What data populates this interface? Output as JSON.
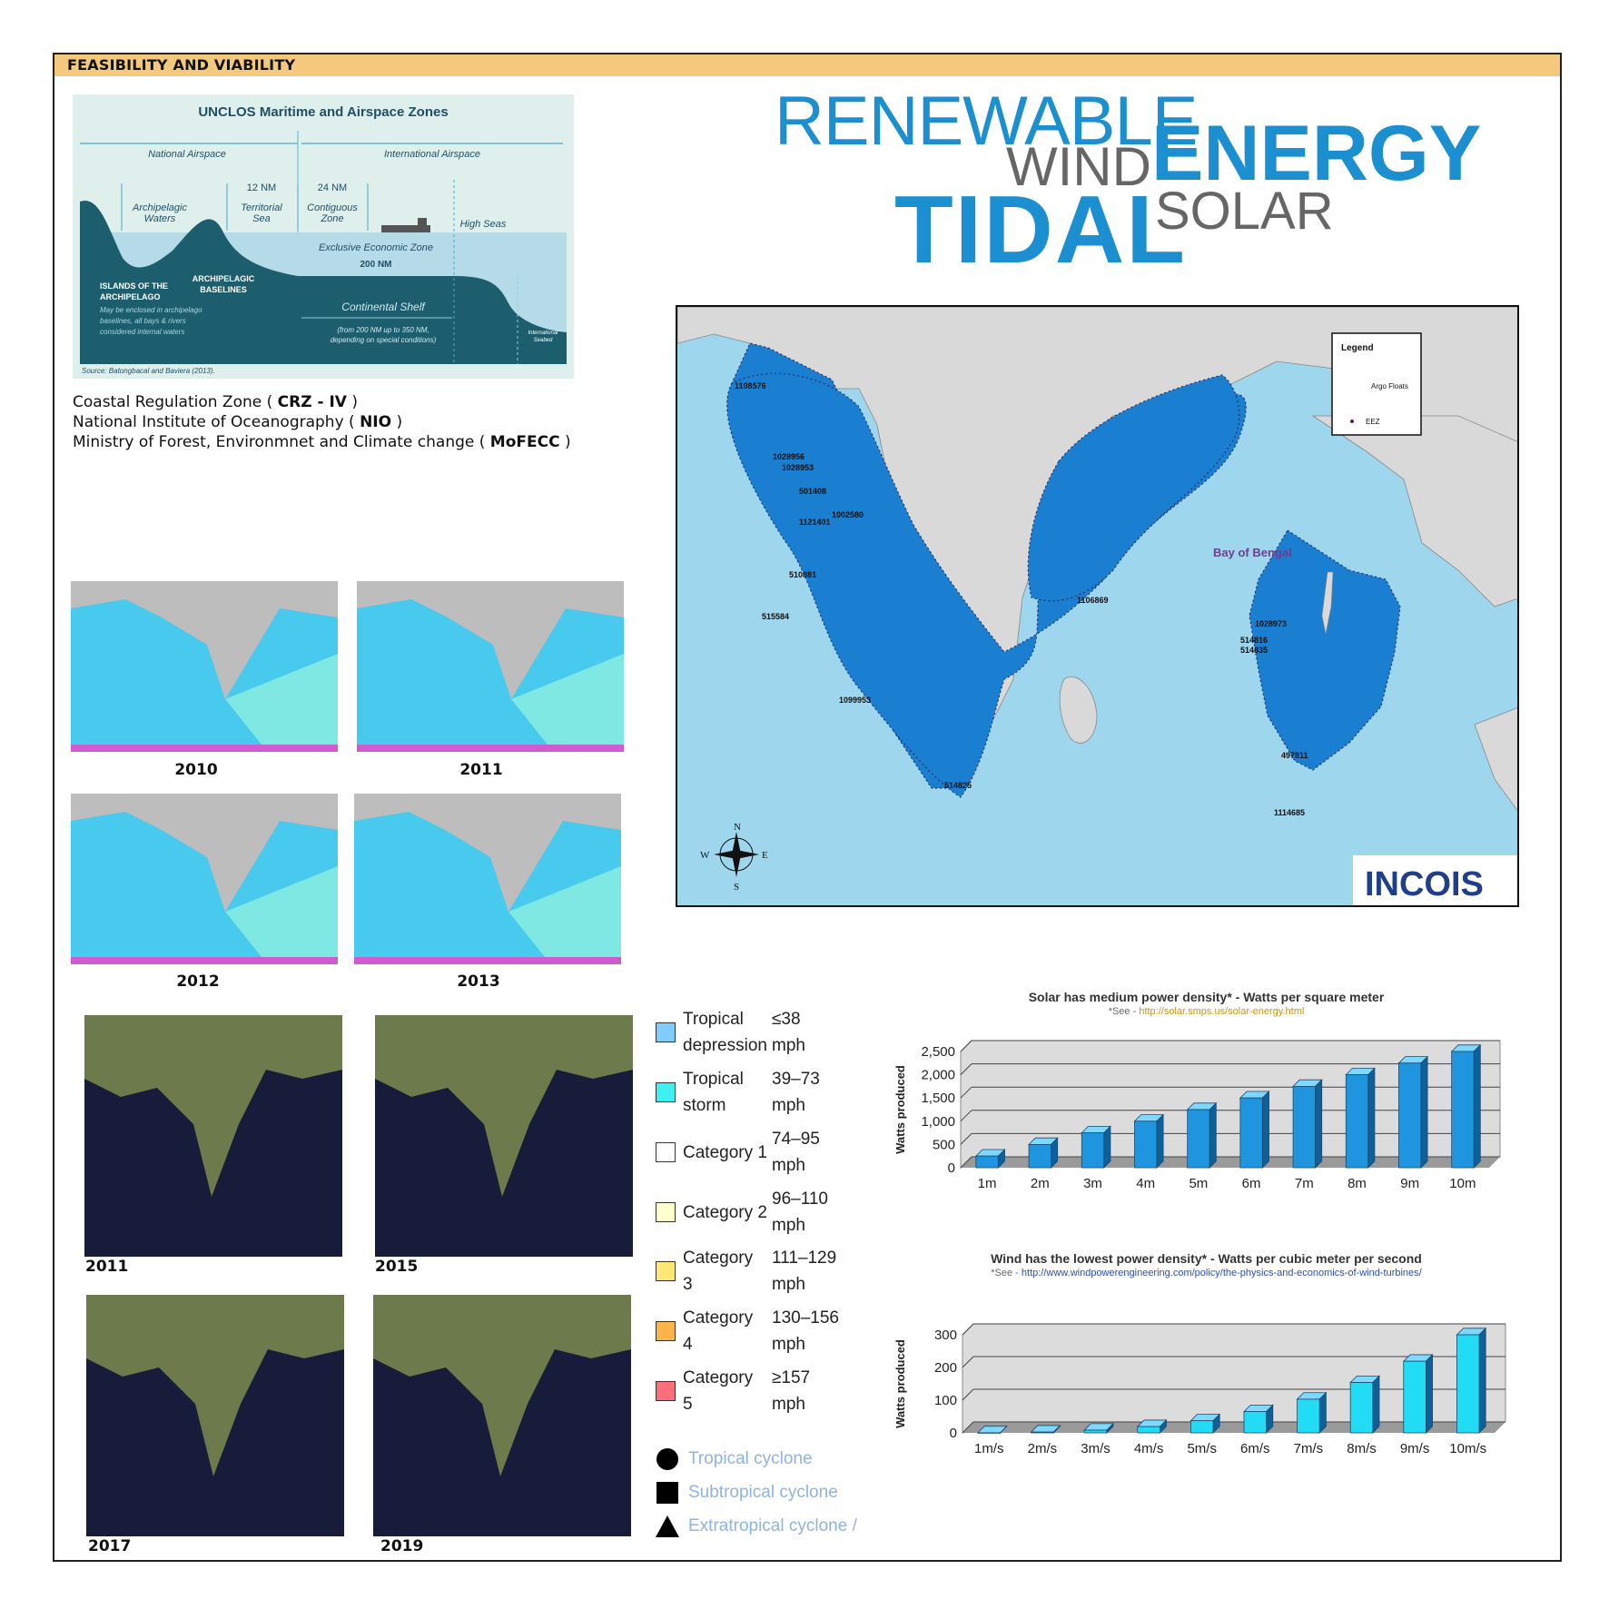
{
  "header": {
    "title": "FEASIBILITY AND VIABILITY"
  },
  "unclos": {
    "title": "UNCLOS Maritime and Airspace Zones",
    "national_airspace": "National Airspace",
    "international_airspace": "International Airspace",
    "nm12": "12 NM",
    "nm24": "24 NM",
    "archipelagic_waters_1": "Archipelagic",
    "archipelagic_waters_2": "Waters",
    "territorial_sea_1": "Territorial",
    "territorial_sea_2": "Sea",
    "contiguous_zone_1": "Contiguous",
    "contiguous_zone_2": "Zone",
    "high_seas": "High Seas",
    "eez": "Exclusive Economic Zone",
    "nm200": "200 NM",
    "islands_1": "ISLANDS OF THE",
    "islands_2": "ARCHIPELAGO",
    "islands_note_1": "May be enclosed in archipelago",
    "islands_note_2": "baselines, all bays & rivers",
    "islands_note_3": "considered internal waters",
    "baselines_1": "ARCHIPELAGIC",
    "baselines_2": "BASELINES",
    "continental_shelf": "Continental Shelf",
    "shelf_note_1": "(from 200 NM up to 350 NM,",
    "shelf_note_2": "depending on special conditions)",
    "intl_seabed_1": "International",
    "intl_seabed_2": "Seabed",
    "source": "Source: Batongbacal and Baviera (2013)."
  },
  "orgs": [
    {
      "pre": "Coastal Regulation Zone ( ",
      "bold": "CRZ - IV",
      "post": " )"
    },
    {
      "pre": "National Institute of Oceanography ( ",
      "bold": "NIO",
      "post": " )"
    },
    {
      "pre": "Ministry of Forest, Environmnet and Climate change ( ",
      "bold": "MoFECC",
      "post": " )"
    }
  ],
  "title_words": {
    "renewable": "RENEWABLE",
    "wind": "WIND",
    "energy": "ENERGY",
    "tidal": "TIDAL",
    "solar": "SOLAR"
  },
  "main_map": {
    "legend_title": "Legend",
    "legend_argo": "Argo Floats",
    "legend_eez": "EEZ",
    "bay_label": "Bay of Bengal",
    "logo": "INCOIS",
    "compass": {
      "n": "N",
      "s": "S",
      "e": "E",
      "w": "W"
    },
    "float_ids": [
      "1108576",
      "1028956",
      "1028953",
      "501408",
      "1121401",
      "1002580",
      "510881",
      "515584",
      "1099953",
      "514825",
      "1106869",
      "1028973",
      "514816",
      "514835",
      "497811",
      "1114685"
    ]
  },
  "wave_maps": [
    "2010",
    "2011",
    "2012",
    "2013"
  ],
  "cyclone_maps": [
    "2011",
    "2015",
    "2017",
    "2019"
  ],
  "cyclone_legend": [
    {
      "name_1": "Tropical",
      "name_2": "depression",
      "speed_1": "≤38",
      "speed_2": "mph",
      "color": "#80ccff"
    },
    {
      "name_1": "Tropical",
      "name_2": "storm",
      "speed_1": "39–73",
      "speed_2": "mph",
      "color": "#3ef0f0"
    },
    {
      "name_1": "Category 1",
      "name_2": "",
      "speed_1": "74–95",
      "speed_2": "mph",
      "color": "#ffffff"
    },
    {
      "name_1": "Category 2",
      "name_2": "",
      "speed_1": "96–110",
      "speed_2": "mph",
      "color": "#ffffcc"
    },
    {
      "name_1": "Category",
      "name_2": "3",
      "speed_1": "111–129",
      "speed_2": "mph",
      "color": "#ffe775"
    },
    {
      "name_1": "Category",
      "name_2": "4",
      "speed_1": "130–156",
      "speed_2": "mph",
      "color": "#ffb44a"
    },
    {
      "name_1": "Category",
      "name_2": "5",
      "speed_1": "≥157",
      "speed_2": "mph",
      "color": "#ff6f7a"
    }
  ],
  "cyclone_types": [
    {
      "label": "Tropical cyclone",
      "icon": "circle-icon"
    },
    {
      "label": "Subtropical cyclone",
      "icon": "square-icon"
    },
    {
      "label": "Extratropical cyclone /",
      "icon": "triangle-icon"
    }
  ],
  "colors": {
    "accent": "#1b8fd0",
    "header_bar": "#f5c97d",
    "bar_dark": "#1f95e0",
    "bar_light": "#22dcf5"
  },
  "chart_data": [
    {
      "type": "bar",
      "title": "Solar has medium power density* - Watts per square meter",
      "see_prefix": "*See - ",
      "see_link": "http://solar.smps.us/solar-energy.html",
      "xlabel": "",
      "ylabel": "Watts produced",
      "categories": [
        "1m",
        "2m",
        "3m",
        "4m",
        "5m",
        "6m",
        "7m",
        "8m",
        "9m",
        "10m"
      ],
      "values": [
        250,
        500,
        750,
        1000,
        1250,
        1500,
        1750,
        2000,
        2250,
        2500
      ],
      "ylim": [
        0,
        2500
      ],
      "yticks": [
        "0",
        "500",
        "1,000",
        "1,500",
        "2,000",
        "2,500"
      ],
      "grid": true
    },
    {
      "type": "bar",
      "title": "Wind has the lowest power density* - Watts per cubic meter per second",
      "see_prefix": "*See - ",
      "see_link": "http://www.windpowerengineering.com/policy/the-physics-and-economics-of-wind-turbines/",
      "xlabel": "",
      "ylabel": "Watts produced",
      "categories": [
        "1m/s",
        "2m/s",
        "3m/s",
        "4m/s",
        "5m/s",
        "6m/s",
        "7m/s",
        "8m/s",
        "9m/s",
        "10m/s"
      ],
      "values": [
        0.3,
        2.4,
        8.1,
        19,
        37,
        65,
        103,
        154,
        219,
        300
      ],
      "ylim": [
        0,
        300
      ],
      "yticks": [
        "0",
        "100",
        "200",
        "300"
      ],
      "grid": true
    }
  ]
}
